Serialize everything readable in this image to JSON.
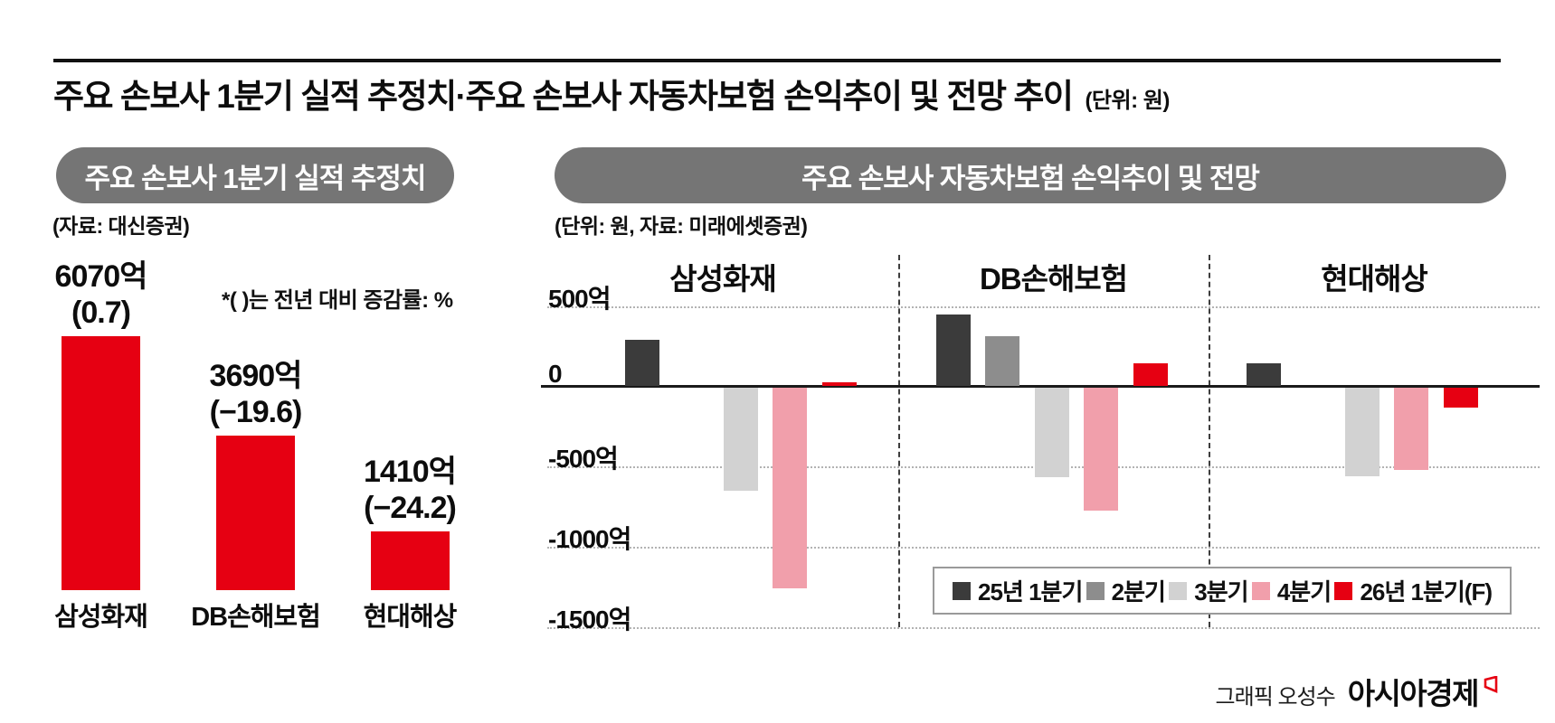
{
  "header": {
    "title": "주요 손보사 1분기 실적 추정치·주요 손보사 자동차보험 손익추이 및 전망 추이",
    "unit_note": "(단위: 원)"
  },
  "left_panel": {
    "pill_label": "주요 손보사 1분기 실적 추정치",
    "source_note": "(자료: 대신증권)",
    "footnote": "*( )는 전년 대비 증감률: %"
  },
  "right_panel": {
    "pill_label": "주요 손보사 자동차보험 손익추이 및 전망",
    "source_note": "(단위: 원, 자료: 미래에셋증권)"
  },
  "credit": {
    "graphic_by": "그래픽 오성수",
    "brand": "아시아경제",
    "brand_mark_color": "#e60012"
  },
  "colors": {
    "accent_red": "#e60012",
    "pill_gray": "#757575",
    "dark": "#3b3b3b",
    "mid_gray": "#8d8d8d",
    "light_gray": "#d2d2d2",
    "pink": "#f19fab"
  },
  "chart_data": [
    {
      "type": "bar",
      "title": "주요 손보사 1분기 실적 추정치",
      "source": "대신증권",
      "unit": "억 원",
      "categories": [
        "삼성화재",
        "DB손해보험",
        "현대해상"
      ],
      "values": [
        6070,
        3690,
        1410
      ],
      "value_labels": [
        "6070억",
        "3690억",
        "1410억"
      ],
      "change_labels": [
        "(0.7)",
        "(−19.6)",
        "(−24.2)"
      ],
      "bar_color": "#e60012",
      "ylim": [
        0,
        6500
      ],
      "grid": false,
      "note": "*( )는 전년 대비 증감률: %"
    },
    {
      "type": "bar",
      "title": "주요 손보사 자동차보험 손익추이 및 전망",
      "source": "미래에셋증권",
      "unit": "억 원",
      "categories": [
        "삼성화재",
        "DB손해보험",
        "현대해상"
      ],
      "series": [
        {
          "name": "25년 1분기",
          "color": "#3b3b3b",
          "values": [
            285,
            445,
            140
          ]
        },
        {
          "name": "2분기",
          "color": "#8d8d8d",
          "values": [
            0,
            310,
            0
          ]
        },
        {
          "name": "3분기",
          "color": "#d2d2d2",
          "values": [
            -640,
            -555,
            -550
          ]
        },
        {
          "name": "4분기",
          "color": "#f19fab",
          "values": [
            -1250,
            -765,
            -515
          ]
        },
        {
          "name": "26년 1분기(F)",
          "color": "#e60012",
          "values": [
            25,
            140,
            -125
          ]
        }
      ],
      "axis_ticks": [
        {
          "label": "500억",
          "value": 500
        },
        {
          "label": "0",
          "value": 0
        },
        {
          "label": "-500억",
          "value": -500
        },
        {
          "label": "-1000억",
          "value": -1000
        },
        {
          "label": "-1500억",
          "value": -1500
        }
      ],
      "ylim": [
        -1500,
        500
      ],
      "grid": "horizontal-dotted",
      "legend_position": "bottom-right"
    }
  ]
}
